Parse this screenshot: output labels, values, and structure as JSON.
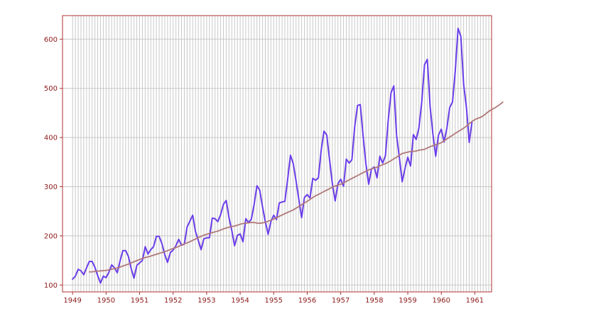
{
  "chart_data": {
    "type": "line",
    "title": "",
    "xlabel": "",
    "ylabel": "",
    "x_start": "1949-01",
    "x_step": "month",
    "xlim": [
      1948.7,
      1961.5
    ],
    "ylim": [
      86,
      648
    ],
    "x_ticks": [
      1949,
      1950,
      1951,
      1952,
      1953,
      1954,
      1955,
      1956,
      1957,
      1958,
      1959,
      1960,
      1961
    ],
    "x_tick_labels": [
      "1949",
      "1950",
      "1951",
      "1952",
      "1953",
      "1954",
      "1955",
      "1956",
      "1957",
      "1958",
      "1959",
      "1960",
      "1961"
    ],
    "y_ticks": [
      100,
      200,
      300,
      400,
      500,
      600
    ],
    "y_tick_labels": [
      "100",
      "200",
      "300",
      "400",
      "500",
      "600"
    ],
    "grid": "on, monthly vertical lines and horizontal lines at y ticks",
    "series": [
      {
        "color": "#6a3de8",
        "values": [
          112,
          118,
          132,
          129,
          121,
          135,
          148,
          148,
          136,
          119,
          104,
          118,
          115,
          126,
          141,
          135,
          125,
          149,
          170,
          170,
          158,
          133,
          114,
          140,
          145,
          150,
          178,
          163,
          172,
          178,
          199,
          199,
          184,
          162,
          146,
          166,
          171,
          180,
          193,
          181,
          183,
          218,
          230,
          242,
          209,
          191,
          172,
          194,
          196,
          196,
          236,
          235,
          229,
          243,
          264,
          272,
          237,
          211,
          180,
          201,
          204,
          188,
          235,
          227,
          234,
          264,
          302,
          293,
          259,
          229,
          203,
          229,
          242,
          233,
          267,
          269,
          270,
          315,
          364,
          347,
          312,
          274,
          237,
          278,
          284,
          277,
          317,
          313,
          318,
          374,
          413,
          405,
          355,
          306,
          271,
          306,
          315,
          301,
          356,
          348,
          355,
          422,
          465,
          467,
          404,
          347,
          305,
          336,
          340,
          318,
          362,
          348,
          363,
          435,
          491,
          505,
          404,
          359,
          310,
          337,
          360,
          342,
          406,
          396,
          420,
          472,
          548,
          559,
          463,
          407,
          362,
          405,
          417,
          391,
          419,
          461,
          472,
          535,
          622,
          606,
          508,
          461,
          390,
          432
        ]
      },
      {
        "color": "#b07878",
        "start_index": 6,
        "values": [
          126.7,
          126.9,
          127.6,
          128.3,
          128.8,
          129.2,
          129.7,
          130.9,
          132.3,
          133.5,
          134.6,
          136.4,
          138.8,
          140.6,
          142.5,
          145.0,
          147.4,
          149.6,
          151.9,
          154.1,
          155.8,
          157.2,
          158.9,
          160.7,
          162.6,
          164.3,
          166.0,
          167.9,
          169.9,
          172.2,
          174.5,
          176.2,
          178.5,
          181.3,
          183.8,
          185.7,
          188.3,
          191.0,
          193.6,
          196.4,
          199.1,
          201.3,
          203.2,
          205.0,
          206.5,
          208.2,
          209.8,
          211.8,
          214.1,
          216.1,
          217.6,
          219.0,
          220.0,
          221.7,
          223.7,
          225.0,
          226.0,
          226.5,
          227.2,
          227.3,
          226.0,
          225.7,
          226.4,
          227.6,
          229.8,
          232.0,
          234.2,
          236.8,
          239.7,
          242.5,
          245.2,
          247.8,
          250.2,
          252.7,
          256.3,
          259.7,
          263.2,
          266.9,
          270.3,
          274.0,
          278.0,
          281.6,
          284.2,
          287.2,
          290.3,
          293.1,
          296.0,
          299.1,
          301.3,
          303.2,
          305.0,
          307.7,
          310.7,
          313.8,
          316.8,
          319.7,
          322.5,
          325.6,
          328.6,
          331.5,
          334.1,
          336.3,
          338.0,
          339.8,
          342.2,
          344.6,
          347.0,
          349.7,
          353.0,
          356.7,
          360.0,
          364.0,
          367.5,
          369.0,
          370.3,
          371.7,
          371.9,
          372.4,
          374.3,
          375.0,
          376.0,
          378.8,
          381.4,
          383.4,
          385.3,
          387.1,
          389.6,
          393.4,
          397.1,
          401.0,
          404.5,
          408.5,
          411.9,
          415.5,
          419.0,
          423.3,
          428.3,
          432.9,
          436.3,
          439.0,
          440.9,
          444.0,
          448.6,
          453.2,
          456.7,
          459.8,
          463.3,
          467.4,
          472.0
        ]
      }
    ]
  }
}
